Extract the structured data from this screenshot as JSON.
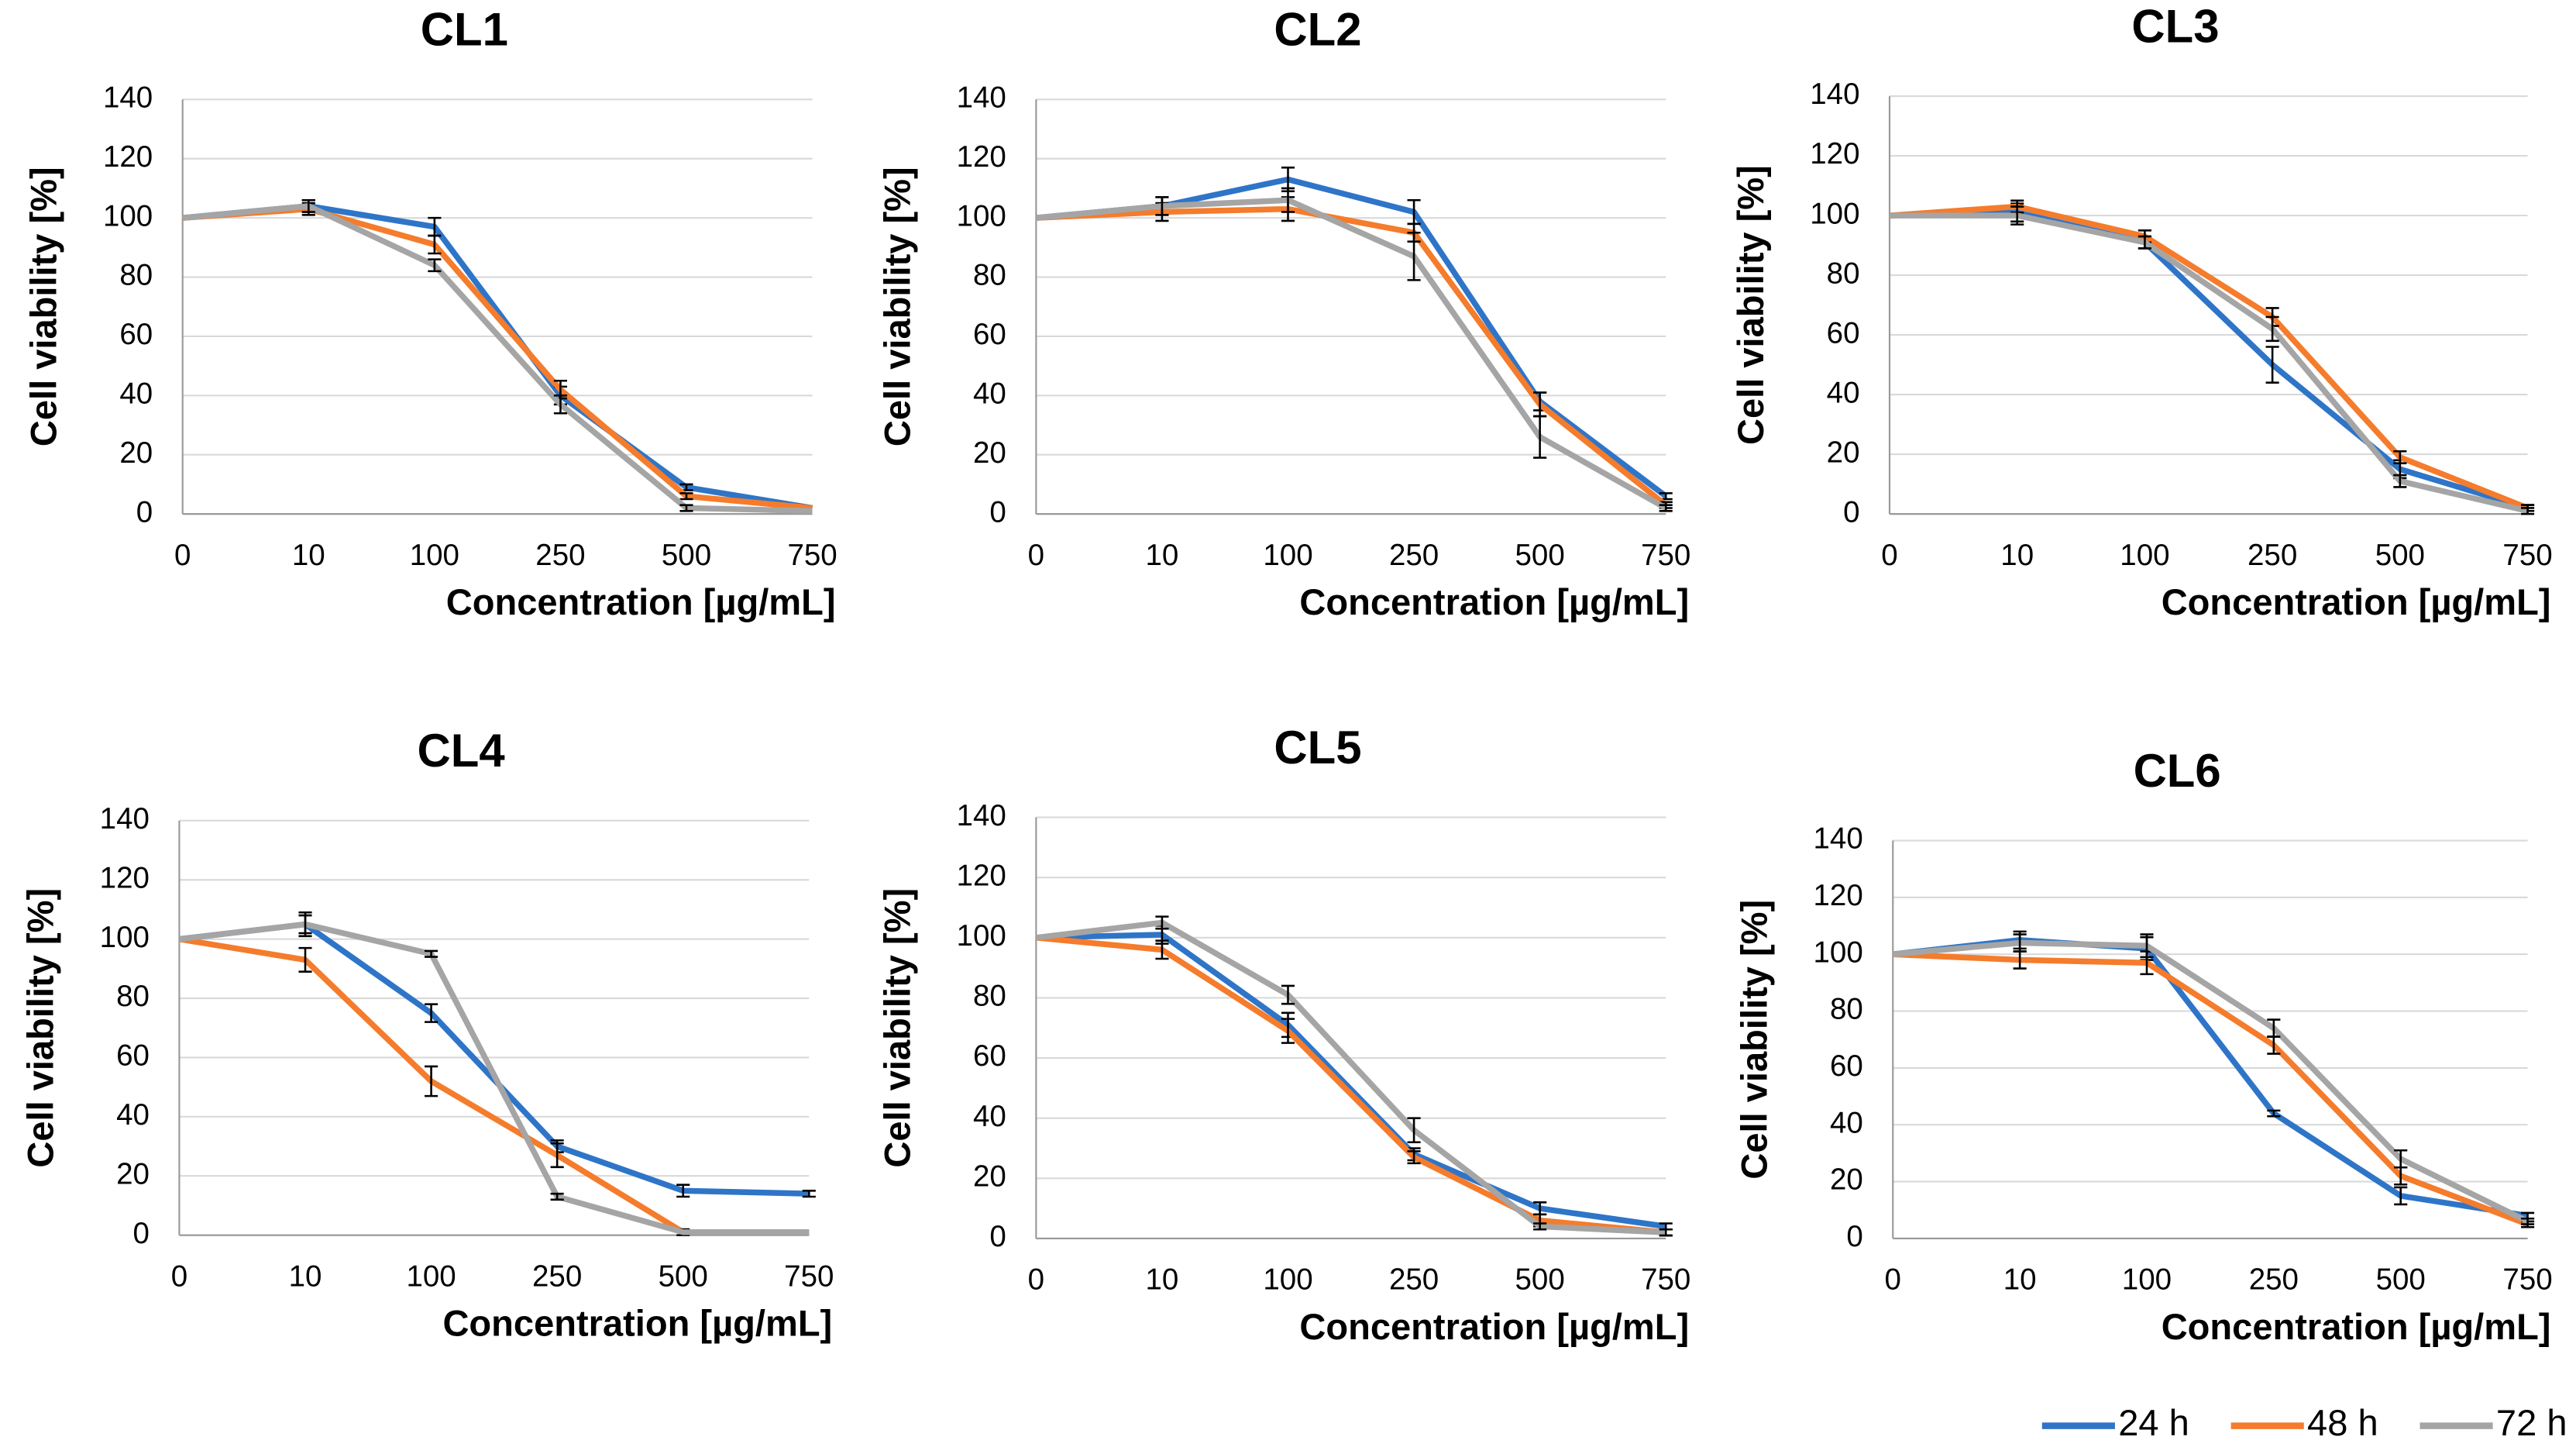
{
  "chart_data": [
    {
      "type": "line",
      "title": "CL1",
      "x_label": "Concentration [µg/mL]",
      "y_label": "Cell viability [%]",
      "categories": [
        "0",
        "10",
        "100",
        "250",
        "500",
        "750"
      ],
      "ylim": [
        0,
        140
      ],
      "yticks": [
        0,
        20,
        40,
        60,
        80,
        100,
        120,
        140
      ],
      "grid": true,
      "series": [
        {
          "values": [
            100,
            104,
            97,
            40,
            9,
            2
          ],
          "errors": [
            0,
            2,
            3,
            3,
            1,
            0
          ]
        },
        {
          "values": [
            100,
            103,
            91,
            42,
            6,
            2
          ],
          "errors": [
            0,
            2,
            3,
            3,
            1,
            0
          ]
        },
        {
          "values": [
            100,
            104,
            84,
            37,
            2,
            1
          ],
          "errors": [
            0,
            2,
            2,
            3,
            1,
            0
          ]
        }
      ]
    },
    {
      "type": "line",
      "title": "CL2",
      "x_label": "Concentration [µg/mL]",
      "y_label": "Cell viability [%]",
      "categories": [
        "0",
        "10",
        "100",
        "250",
        "500",
        "750"
      ],
      "ylim": [
        0,
        140
      ],
      "yticks": [
        0,
        20,
        40,
        60,
        80,
        100,
        120,
        140
      ],
      "grid": true,
      "series": [
        {
          "values": [
            100,
            104,
            113,
            102,
            38,
            6
          ],
          "errors": [
            0,
            3,
            4,
            4,
            3,
            1
          ]
        },
        {
          "values": [
            100,
            102,
            103,
            95,
            37,
            3
          ],
          "errors": [
            0,
            3,
            4,
            3,
            4,
            1
          ]
        },
        {
          "values": [
            100,
            104,
            106,
            87,
            26,
            2
          ],
          "errors": [
            0,
            3,
            4,
            8,
            7,
            1
          ]
        }
      ]
    },
    {
      "type": "line",
      "title": "CL3",
      "x_label": "Concentration [µg/mL]",
      "y_label": "Cell viability [%]",
      "categories": [
        "0",
        "10",
        "100",
        "250",
        "500",
        "750"
      ],
      "ylim": [
        0,
        140
      ],
      "yticks": [
        0,
        20,
        40,
        60,
        80,
        100,
        120,
        140
      ],
      "grid": true,
      "series": [
        {
          "values": [
            100,
            101,
            91,
            50,
            15,
            2
          ],
          "errors": [
            0,
            3,
            2,
            6,
            3,
            1
          ]
        },
        {
          "values": [
            100,
            103,
            93,
            66,
            19,
            2
          ],
          "errors": [
            0,
            2,
            2,
            3,
            2,
            1
          ]
        },
        {
          "values": [
            100,
            100,
            91,
            62,
            11,
            1
          ],
          "errors": [
            0,
            3,
            2,
            4,
            2,
            1
          ]
        }
      ]
    },
    {
      "type": "line",
      "title": "CL4",
      "x_label": "Concentration [µg/mL]",
      "y_label": "Cell viability [%]",
      "categories": [
        "0",
        "10",
        "100",
        "250",
        "500",
        "750"
      ],
      "ylim": [
        0,
        140
      ],
      "yticks": [
        0,
        20,
        40,
        60,
        80,
        100,
        120,
        140
      ],
      "grid": true,
      "series": [
        {
          "values": [
            100,
            105,
            75,
            30,
            15,
            14
          ],
          "errors": [
            0,
            3,
            3,
            2,
            2,
            1
          ]
        },
        {
          "values": [
            100,
            93,
            52,
            27,
            1,
            1
          ],
          "errors": [
            0,
            4,
            5,
            4,
            1,
            0
          ]
        },
        {
          "values": [
            100,
            105,
            95,
            13,
            1,
            1
          ],
          "errors": [
            0,
            4,
            1,
            1,
            0,
            0
          ]
        }
      ]
    },
    {
      "type": "line",
      "title": "CL5",
      "x_label": "Concentration [µg/mL]",
      "y_label": "Cell viability [%]",
      "categories": [
        "0",
        "10",
        "100",
        "250",
        "500",
        "750"
      ],
      "ylim": [
        0,
        140
      ],
      "yticks": [
        0,
        20,
        40,
        60,
        80,
        100,
        120,
        140
      ],
      "grid": true,
      "series": [
        {
          "values": [
            100,
            101,
            71,
            28,
            10,
            4
          ],
          "errors": [
            0,
            3,
            4,
            2,
            2,
            1
          ]
        },
        {
          "values": [
            100,
            96,
            69,
            27,
            6,
            2
          ],
          "errors": [
            0,
            3,
            4,
            2,
            2,
            1
          ]
        },
        {
          "values": [
            100,
            105,
            81,
            36,
            4,
            2
          ],
          "errors": [
            0,
            2,
            3,
            4,
            1,
            1
          ]
        }
      ]
    },
    {
      "type": "line",
      "title": "CL6",
      "x_label": "Concentration [µg/mL]",
      "y_label": "Cell viability [%]",
      "categories": [
        "0",
        "10",
        "100",
        "250",
        "500",
        "750"
      ],
      "ylim": [
        0,
        140
      ],
      "yticks": [
        0,
        20,
        40,
        60,
        80,
        100,
        120,
        140
      ],
      "grid": true,
      "series": [
        {
          "values": [
            100,
            105,
            102,
            44,
            15,
            8
          ],
          "errors": [
            0,
            3,
            4,
            1,
            3,
            1
          ]
        },
        {
          "values": [
            100,
            98,
            97,
            68,
            22,
            5
          ],
          "errors": [
            0,
            3,
            4,
            3,
            3,
            1
          ]
        },
        {
          "values": [
            100,
            104,
            103,
            74,
            28,
            6
          ],
          "errors": [
            0,
            3,
            4,
            3,
            3,
            1
          ]
        }
      ]
    }
  ],
  "legend": {
    "position": "bottom-right",
    "items": [
      {
        "name": "24 h",
        "color": "#2e75c8"
      },
      {
        "name": "48 h",
        "color": "#f47c2c"
      },
      {
        "name": "72 h",
        "color": "#a5a5a5"
      }
    ]
  }
}
